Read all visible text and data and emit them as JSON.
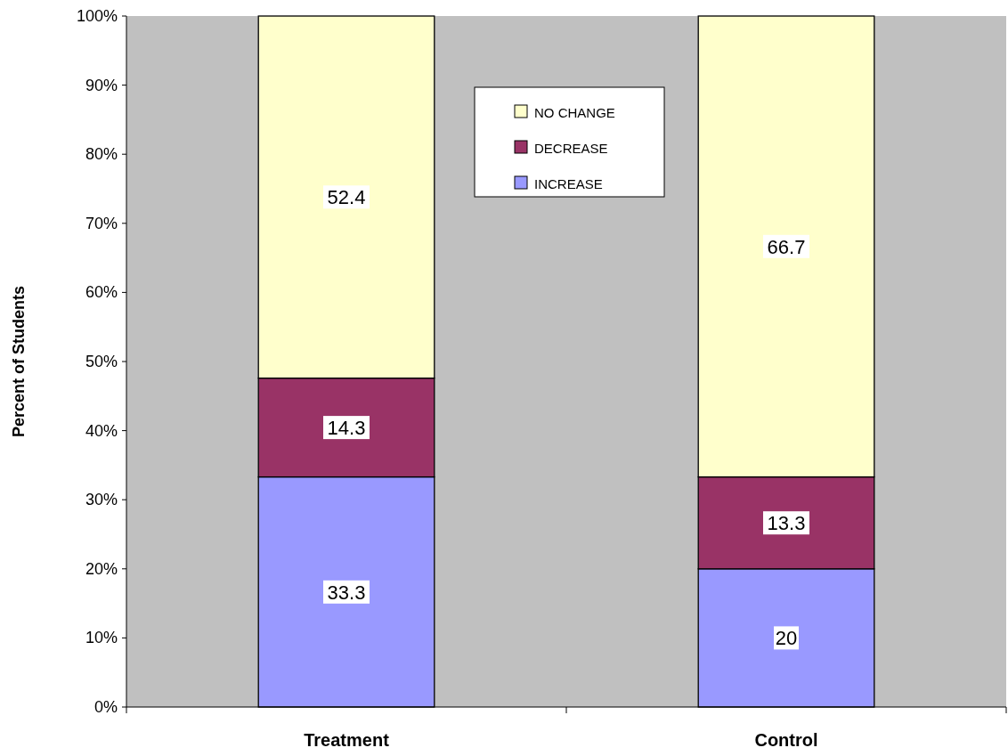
{
  "chart_data": {
    "type": "bar",
    "stacked": true,
    "ylabel": "Percent of Students",
    "categories": [
      "Treatment",
      "Control"
    ],
    "series": [
      {
        "name": "INCREASE",
        "color": "#9999ff",
        "values": [
          33.3,
          20
        ]
      },
      {
        "name": "DECREASE",
        "color": "#993366",
        "values": [
          14.3,
          13.3
        ]
      },
      {
        "name": "NO CHANGE",
        "color": "#ffffcc",
        "values": [
          52.4,
          66.7
        ]
      }
    ],
    "ylim": [
      0,
      100
    ],
    "yticks": [
      {
        "value": 0,
        "label": "0%"
      },
      {
        "value": 10,
        "label": "10%"
      },
      {
        "value": 20,
        "label": "20%"
      },
      {
        "value": 30,
        "label": "30%"
      },
      {
        "value": 40,
        "label": "40%"
      },
      {
        "value": 50,
        "label": "50%"
      },
      {
        "value": 60,
        "label": "60%"
      },
      {
        "value": 70,
        "label": "70%"
      },
      {
        "value": 80,
        "label": "80%"
      },
      {
        "value": 90,
        "label": "90%"
      },
      {
        "value": 100,
        "label": "100%"
      }
    ],
    "grid": false,
    "legend": "top",
    "data_labels": true
  }
}
